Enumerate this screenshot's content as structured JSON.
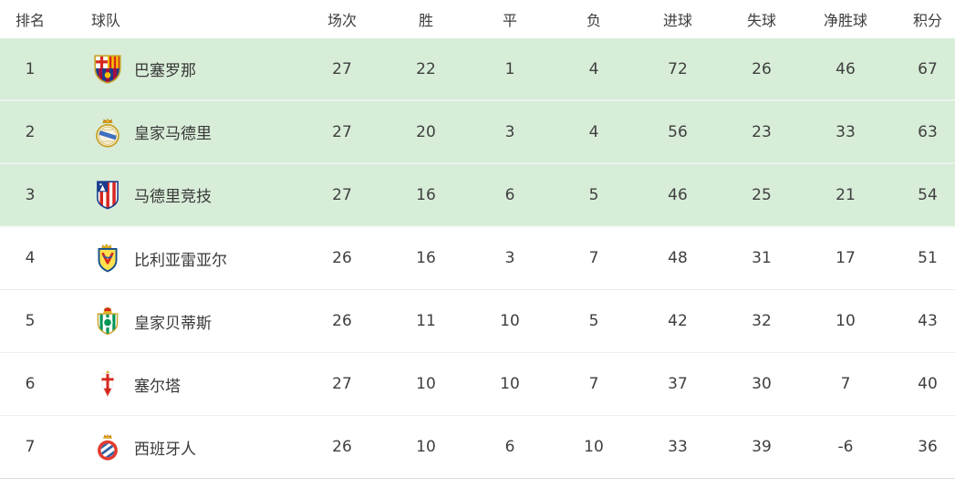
{
  "table": {
    "columns": [
      {
        "key": "rank",
        "label": "排名"
      },
      {
        "key": "team",
        "label": "球队"
      },
      {
        "key": "played",
        "label": "场次"
      },
      {
        "key": "won",
        "label": "胜"
      },
      {
        "key": "drawn",
        "label": "平"
      },
      {
        "key": "lost",
        "label": "负"
      },
      {
        "key": "goals_for",
        "label": "进球"
      },
      {
        "key": "goals_against",
        "label": "失球"
      },
      {
        "key": "goal_diff",
        "label": "净胜球"
      },
      {
        "key": "points",
        "label": "积分"
      }
    ],
    "rows": [
      {
        "rank": "1",
        "team": "巴塞罗那",
        "badge": "barcelona-badge",
        "played": "27",
        "won": "22",
        "drawn": "1",
        "lost": "4",
        "goals_for": "72",
        "goals_against": "26",
        "goal_diff": "46",
        "points": "67",
        "highlighted": true
      },
      {
        "rank": "2",
        "team": "皇家马德里",
        "badge": "real-madrid-badge",
        "played": "27",
        "won": "20",
        "drawn": "3",
        "lost": "4",
        "goals_for": "56",
        "goals_against": "23",
        "goal_diff": "33",
        "points": "63",
        "highlighted": true
      },
      {
        "rank": "3",
        "team": "马德里竞技",
        "badge": "atletico-madrid-badge",
        "played": "27",
        "won": "16",
        "drawn": "6",
        "lost": "5",
        "goals_for": "46",
        "goals_against": "25",
        "goal_diff": "21",
        "points": "54",
        "highlighted": true
      },
      {
        "rank": "4",
        "team": "比利亚雷亚尔",
        "badge": "villarreal-badge",
        "played": "26",
        "won": "16",
        "drawn": "3",
        "lost": "7",
        "goals_for": "48",
        "goals_against": "31",
        "goal_diff": "17",
        "points": "51",
        "highlighted": false
      },
      {
        "rank": "5",
        "team": "皇家贝蒂斯",
        "badge": "real-betis-badge",
        "played": "26",
        "won": "11",
        "drawn": "10",
        "lost": "5",
        "goals_for": "42",
        "goals_against": "32",
        "goal_diff": "10",
        "points": "43",
        "highlighted": false
      },
      {
        "rank": "6",
        "team": "塞尔塔",
        "badge": "celta-vigo-badge",
        "played": "27",
        "won": "10",
        "drawn": "10",
        "lost": "7",
        "goals_for": "37",
        "goals_against": "30",
        "goal_diff": "7",
        "points": "40",
        "highlighted": false
      },
      {
        "rank": "7",
        "team": "西班牙人",
        "badge": "espanyol-badge",
        "played": "26",
        "won": "10",
        "drawn": "6",
        "lost": "10",
        "goals_for": "33",
        "goals_against": "39",
        "goal_diff": "-6",
        "points": "36",
        "highlighted": false
      }
    ]
  },
  "colors": {
    "highlight_row_bg": "#d8edd8",
    "row_bg": "#ffffff",
    "text": "#3f3f3f",
    "divider": "#ececec"
  }
}
